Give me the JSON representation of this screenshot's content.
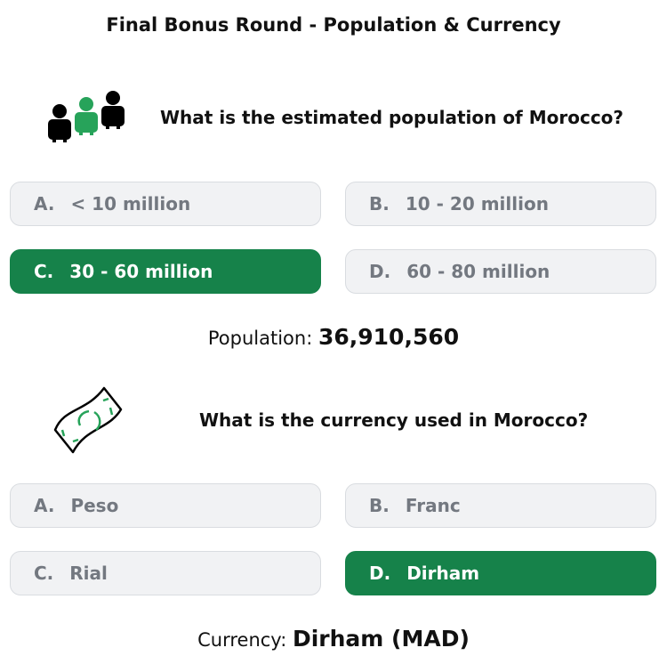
{
  "title": "Final Bonus Round - Population & Currency",
  "questions": [
    {
      "icon": "people-icon",
      "text": "What is the estimated population of Morocco?",
      "options": [
        {
          "letter": "A.",
          "label": "< 10 million"
        },
        {
          "letter": "B.",
          "label": "10 - 20 million"
        },
        {
          "letter": "C.",
          "label": "30 - 60 million",
          "selected": true
        },
        {
          "letter": "D.",
          "label": "60 - 80 million"
        }
      ],
      "result_label": "Population:",
      "result_value": "36,910,560"
    },
    {
      "icon": "banknote-icon",
      "text": "What is the currency used in Morocco?",
      "options": [
        {
          "letter": "A.",
          "label": "Peso"
        },
        {
          "letter": "B.",
          "label": "Franc"
        },
        {
          "letter": "C.",
          "label": "Rial"
        },
        {
          "letter": "D.",
          "label": "Dirham",
          "selected": true
        }
      ],
      "result_label": "Currency:",
      "result_value": "Dirham (MAD)"
    }
  ],
  "colors": {
    "selected": "#16824a",
    "unselected": "#f1f2f4"
  }
}
